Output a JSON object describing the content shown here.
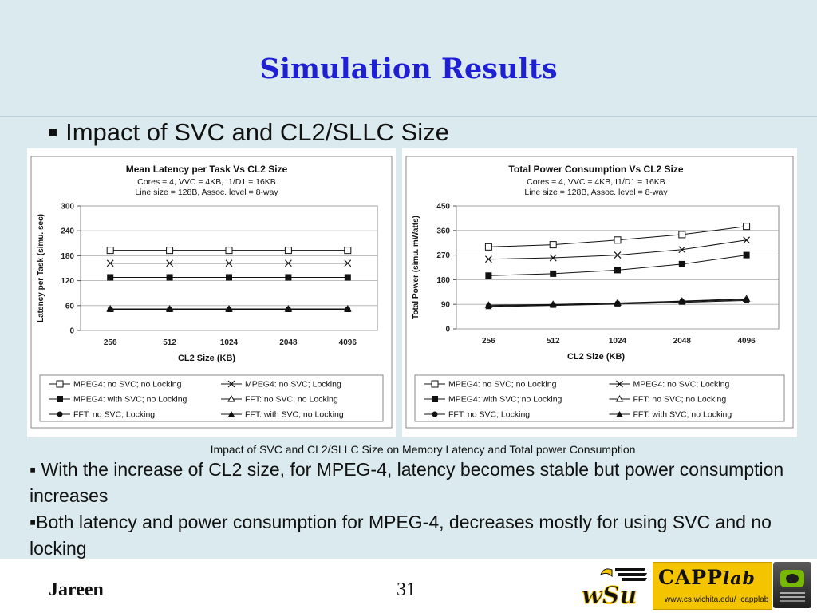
{
  "slide": {
    "title": "Simulation Results",
    "heading_marker": "■",
    "heading": "Impact of SVC and CL2/SLLC Size",
    "caption": "Impact of SVC and CL2/SLLC Size on Memory Latency and Total power Consumption",
    "bullets": [
      "▪ With the increase of CL2 size, for MPEG-4, latency becomes stable but power consumption increases",
      "▪Both latency and power consumption for MPEG-4, decreases mostly for using SVC and no locking"
    ],
    "footer": {
      "author": "Jareen",
      "page_number": "31",
      "capp_logo_text": "CAPP",
      "capp_logo_suffix": "lab",
      "capp_logo_url": "www.cs.wichita.edu/~capplab",
      "wsu_logo_text": "wSu"
    }
  },
  "chart_data": [
    {
      "type": "line",
      "title": "Mean Latency per Task Vs CL2  Size",
      "subtitle": [
        "Cores = 4, VVC = 4KB, I1/D1 = 16KB",
        "Line size = 128B, Assoc. level = 8-way"
      ],
      "xlabel": "CL2 Size (KB)",
      "ylabel": "Latency per Task (simu. sec)",
      "categories": [
        "256",
        "512",
        "1024",
        "2048",
        "4096"
      ],
      "ylim": [
        0,
        300
      ],
      "yticks": [
        0,
        60,
        120,
        180,
        240,
        300
      ],
      "grid": true,
      "legend_position": "bottom",
      "series": [
        {
          "name": "MPEG4: no SVC; no Locking",
          "marker": "open-square",
          "values": [
            193,
            193,
            193,
            193,
            193
          ]
        },
        {
          "name": "MPEG4: no SVC; Locking",
          "marker": "x",
          "values": [
            162,
            162,
            162,
            162,
            162
          ]
        },
        {
          "name": "MPEG4: with SVC; no Locking",
          "marker": "filled-square",
          "values": [
            128,
            128,
            128,
            128,
            128
          ]
        },
        {
          "name": "FFT: no SVC; no Locking",
          "marker": "open-triangle",
          "values": [
            52,
            52,
            52,
            52,
            52
          ]
        },
        {
          "name": "FFT: no SVC; Locking",
          "marker": "filled-circle",
          "values": [
            51,
            51,
            51,
            51,
            51
          ]
        },
        {
          "name": "FFT: with SVC; no Locking",
          "marker": "filled-triangle",
          "values": [
            50,
            50,
            50,
            50,
            50
          ]
        }
      ]
    },
    {
      "type": "line",
      "title": "Total Power Consumption  Vs CL2  Size",
      "subtitle": [
        "Cores = 4, VVC = 4KB, I1/D1 = 16KB",
        "Line size = 128B, Assoc. level = 8-way"
      ],
      "xlabel": "CL2 Size (KB)",
      "ylabel": "Total Power (simu. mWatts)",
      "categories": [
        "256",
        "512",
        "1024",
        "2048",
        "4096"
      ],
      "ylim": [
        0,
        450
      ],
      "yticks": [
        0,
        90,
        180,
        270,
        360,
        450
      ],
      "grid": true,
      "legend_position": "bottom",
      "series": [
        {
          "name": "MPEG4: no SVC; no Locking",
          "marker": "open-square",
          "values": [
            300,
            308,
            325,
            345,
            375
          ]
        },
        {
          "name": "MPEG4: no SVC; Locking",
          "marker": "x",
          "values": [
            255,
            260,
            270,
            290,
            325
          ]
        },
        {
          "name": "MPEG4: with SVC; no Locking",
          "marker": "filled-square",
          "values": [
            195,
            202,
            215,
            237,
            270
          ]
        },
        {
          "name": "FFT: no SVC; no Locking",
          "marker": "open-triangle",
          "values": [
            87,
            90,
            95,
            102,
            110
          ]
        },
        {
          "name": "FFT: no SVC; Locking",
          "marker": "filled-circle",
          "values": [
            84,
            88,
            94,
            100,
            107
          ]
        },
        {
          "name": "FFT: with SVC; no Locking",
          "marker": "filled-triangle",
          "values": [
            81,
            86,
            91,
            97,
            104
          ]
        }
      ]
    }
  ]
}
